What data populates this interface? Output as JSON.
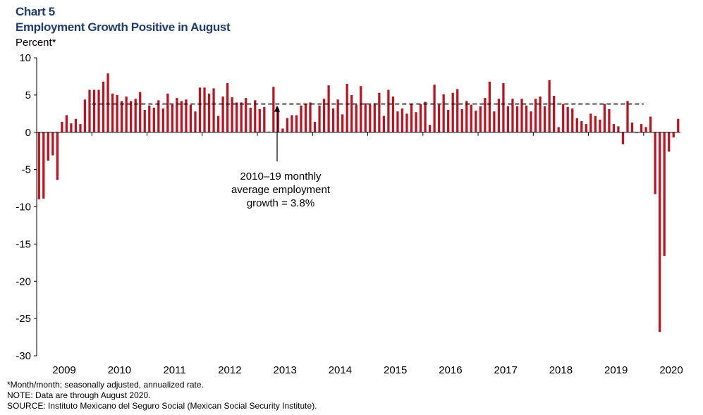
{
  "header": {
    "chart_number": "Chart 5",
    "title": "Employment Growth Positive in August",
    "ylabel": "Percent*"
  },
  "notes": [
    "*Month/month; seasonally adjusted, annualized rate.",
    "NOTE: Data are through August 2020.",
    "SOURCE: Instituto Mexicano del Seguro Social (Mexican Social Security Institute)."
  ],
  "colors": {
    "bar": "#c0121e",
    "title": "#1f3d6e",
    "reference": "#000000"
  },
  "chart_data": {
    "type": "bar",
    "title": "Employment Growth Positive in August",
    "ylabel": "Percent*",
    "ylim": [
      -30,
      10
    ],
    "yticks": [
      10,
      5,
      0,
      -5,
      -10,
      -15,
      -20,
      -25,
      -30
    ],
    "year_labels": [
      "2009",
      "2010",
      "2011",
      "2012",
      "2013",
      "2014",
      "2015",
      "2016",
      "2017",
      "2018",
      "2019",
      "2020"
    ],
    "start": "2009-01",
    "end": "2020-08",
    "reference_line": {
      "value": 3.8,
      "label_lines": [
        "2010–19 monthly",
        "average employment",
        "growth = 3.8%"
      ]
    },
    "values": [
      -9.0,
      -8.9,
      -3.8,
      -3.1,
      -6.4,
      1.4,
      2.3,
      1.2,
      1.8,
      1.1,
      4.4,
      5.7,
      5.7,
      5.7,
      6.8,
      7.9,
      5.2,
      5.0,
      4.2,
      4.8,
      4.2,
      4.5,
      5.4,
      3.0,
      3.6,
      3.3,
      4.3,
      3.2,
      5.2,
      3.7,
      4.6,
      4.2,
      4.4,
      3.7,
      2.8,
      6.0,
      6.0,
      5.2,
      5.9,
      2.2,
      4.8,
      6.6,
      4.7,
      4.0,
      4.0,
      4.6,
      3.3,
      4.3,
      3.1,
      3.4,
      0.1,
      6.1,
      3.2,
      0.5,
      1.9,
      2.3,
      2.3,
      3.6,
      3.8,
      4.0,
      1.4,
      3.6,
      4.5,
      6.3,
      3.2,
      4.4,
      2.4,
      6.5,
      5.0,
      3.7,
      6.2,
      3.9,
      3.7,
      3.9,
      5.3,
      2.2,
      5.7,
      4.8,
      2.8,
      3.2,
      2.5,
      3.8,
      2.7,
      3.8,
      4.1,
      1.0,
      6.4,
      3.7,
      5.1,
      3.0,
      5.3,
      5.8,
      3.1,
      4.2,
      3.7,
      2.9,
      3.5,
      4.6,
      6.8,
      2.8,
      4.5,
      6.6,
      3.5,
      4.5,
      3.5,
      4.5,
      3.6,
      2.8,
      4.5,
      4.8,
      3.5,
      7.0,
      4.9,
      0.7,
      3.8,
      3.4,
      3.2,
      1.9,
      1.5,
      1.1,
      2.5,
      2.2,
      1.7,
      3.8,
      3.1,
      1.1,
      0.8,
      -1.6,
      4.2,
      1.3,
      -0.1,
      1.1,
      0.7,
      2.1,
      -8.3,
      -26.8,
      -16.6,
      -2.6,
      -0.7,
      1.8
    ]
  }
}
